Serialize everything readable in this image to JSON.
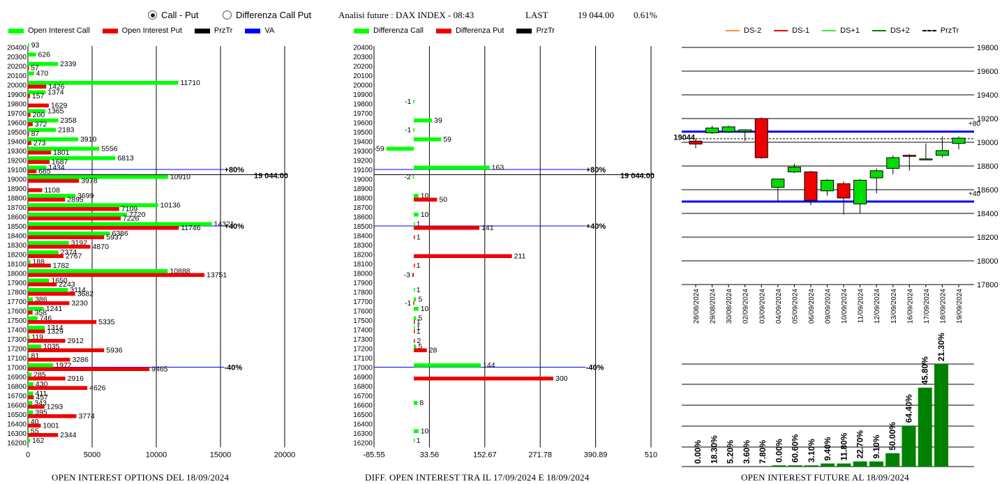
{
  "header": {
    "radio_call_put": "Call - Put",
    "radio_diff": "Differenza Call Put",
    "selected": "call_put",
    "title": "Analisi future : DAX INDEX - 08:43",
    "last_label": "LAST",
    "last_value": "19 044.00",
    "change": "0.61%"
  },
  "legends": {
    "oi": [
      {
        "label": "Open Interest Call",
        "color": "#00ff00"
      },
      {
        "label": "Open Interest Put",
        "color": "#ee0000"
      },
      {
        "label": "PrzTr",
        "color": "#000000"
      },
      {
        "label": "VA",
        "color": "#0000ff"
      }
    ],
    "diff": [
      {
        "label": "Differenza Call",
        "color": "#00ff00"
      },
      {
        "label": "Differenza Put",
        "color": "#ee0000"
      },
      {
        "label": "PrzTr",
        "color": "#000000"
      }
    ],
    "candle": [
      {
        "label": "DS-2",
        "color": "#ff8c3a",
        "style": "solid"
      },
      {
        "label": "DS-1",
        "color": "#ee0000",
        "style": "solid"
      },
      {
        "label": "DS+1",
        "color": "#33ee33",
        "style": "solid"
      },
      {
        "label": "DS+2",
        "color": "#008000",
        "style": "solid"
      },
      {
        "label": "PrzTr",
        "color": "#000000",
        "style": "dashed"
      }
    ]
  },
  "footers": {
    "oi": "OPEN INTEREST OPTIONS DEL 18/09/2024",
    "diff": "DIFF. OPEN INTEREST TRA IL 17/09/2024 E 18/09/2024",
    "fut": "OPEN INTEREST FUTURE AL 18/09/2024"
  },
  "colors": {
    "call": "#00ff00",
    "put": "#ee0000",
    "va": "#0000ff",
    "candle_up": "#00dd00",
    "candle_down": "#ee0000",
    "bar": "#008000"
  },
  "chart_data": [
    {
      "type": "bar",
      "name": "oi",
      "orientation": "horizontal",
      "strikes": [
        20400,
        20300,
        20200,
        20100,
        20000,
        19900,
        19800,
        19700,
        19600,
        19500,
        19400,
        19300,
        19200,
        19100,
        19000,
        18900,
        18800,
        18700,
        18600,
        18500,
        18400,
        18300,
        18200,
        18100,
        18000,
        17900,
        17800,
        17700,
        17600,
        17500,
        17400,
        17300,
        17200,
        17100,
        17000,
        16900,
        16800,
        16700,
        16600,
        16500,
        16400,
        16300,
        16200
      ],
      "series": [
        {
          "name": "Open Interest Call",
          "values": [
            93,
            626,
            2339,
            470,
            11710,
            1374,
            null,
            1365,
            2358,
            2183,
            3910,
            5556,
            6813,
            1434,
            10910,
            null,
            3699,
            10136,
            7720,
            14321,
            6386,
            3192,
            2374,
            188,
            10888,
            1650,
            3114,
            386,
            1241,
            746,
            1314,
            119,
            1035,
            81,
            1972,
            285,
            430,
            411,
            343,
            395,
            40,
            55,
            162
          ]
        },
        {
          "name": "Open Interest Put",
          "values": [
            null,
            null,
            57,
            null,
            1426,
            157,
            1629,
            200,
            372,
            87,
            273,
            1801,
            1687,
            665,
            3978,
            1108,
            2895,
            7109,
            7226,
            11746,
            5937,
            4870,
            2767,
            1782,
            13751,
            2243,
            3682,
            3230,
            358,
            5335,
            1329,
            2912,
            5936,
            3286,
            9465,
            2916,
            4626,
            457,
            1293,
            3774,
            1001,
            2344,
            null
          ]
        }
      ],
      "xlim": [
        0,
        20000
      ],
      "xticks": [
        0,
        5000,
        10000,
        15000,
        20000
      ],
      "przTr": 19044,
      "przTr_label": "19 044.00",
      "va_lines": [
        {
          "strike": 19100,
          "label": "+80%"
        },
        {
          "strike": 18500,
          "label": "+40%"
        },
        {
          "strike": 17000,
          "label": "-40%"
        }
      ]
    },
    {
      "type": "bar",
      "name": "diff",
      "orientation": "horizontal",
      "strikes": [
        20400,
        20300,
        20200,
        20100,
        20000,
        19900,
        19800,
        19700,
        19600,
        19500,
        19400,
        19300,
        19200,
        19100,
        19000,
        18900,
        18800,
        18700,
        18600,
        18500,
        18400,
        18300,
        18200,
        18100,
        18000,
        17900,
        17800,
        17700,
        17600,
        17500,
        17400,
        17300,
        17200,
        17100,
        17000,
        16900,
        16800,
        16700,
        16600,
        16500,
        16400,
        16300,
        16200
      ],
      "series": [
        {
          "name": "Differenza Call",
          "values": [
            null,
            null,
            null,
            null,
            null,
            null,
            -1,
            null,
            39,
            -1,
            59,
            -59,
            null,
            163,
            -2,
            null,
            10,
            null,
            10,
            1,
            null,
            null,
            null,
            null,
            null,
            null,
            1,
            5,
            10,
            5,
            1,
            null,
            5,
            null,
            144,
            null,
            null,
            null,
            8,
            null,
            null,
            10,
            1
          ]
        },
        {
          "name": "Differenza Put",
          "values": [
            null,
            null,
            null,
            null,
            null,
            null,
            null,
            null,
            null,
            null,
            null,
            null,
            null,
            null,
            null,
            null,
            50,
            null,
            null,
            141,
            1,
            null,
            211,
            1,
            -3,
            null,
            null,
            -1,
            null,
            1,
            1,
            2,
            28,
            null,
            null,
            300,
            null,
            null,
            null,
            null,
            null,
            null,
            null
          ]
        }
      ],
      "xlim": [
        -85.55,
        510
      ],
      "xticks": [
        -85.55,
        33.56,
        152.67,
        271.78,
        390.89,
        510
      ],
      "przTr": 19044,
      "przTr_label": "19 044.00",
      "va_lines": [
        {
          "strike": 19100,
          "label": "+80%"
        },
        {
          "strike": 18500,
          "label": "+40%"
        },
        {
          "strike": 17000,
          "label": "-40%"
        }
      ]
    },
    {
      "type": "candlestick",
      "name": "future",
      "dates": [
        "28/08/2024",
        "29/08/2024",
        "30/08/2024",
        "02/09/2024",
        "03/09/2024",
        "04/09/2024",
        "05/09/2024",
        "06/09/2024",
        "09/09/2024",
        "10/09/2024",
        "11/09/2024",
        "12/09/2024",
        "13/09/2024",
        "16/09/2024",
        "17/09/2024",
        "18/09/2024",
        "19/09/2024"
      ],
      "ohlc": [
        [
          19010,
          19030,
          18950,
          18985
        ],
        [
          19080,
          19140,
          19070,
          19120
        ],
        [
          19090,
          19140,
          19080,
          19130
        ],
        [
          19090,
          19110,
          19010,
          19105
        ],
        [
          19200,
          19210,
          18860,
          18870
        ],
        [
          18620,
          18690,
          18500,
          18690
        ],
        [
          18750,
          18820,
          18740,
          18790
        ],
        [
          18750,
          18760,
          18470,
          18510
        ],
        [
          18590,
          18690,
          18550,
          18680
        ],
        [
          18650,
          18670,
          18390,
          18530
        ],
        [
          18480,
          18690,
          18400,
          18680
        ],
        [
          18700,
          18780,
          18570,
          18760
        ],
        [
          18780,
          18890,
          18730,
          18870
        ],
        [
          18890,
          18900,
          18760,
          18885
        ],
        [
          18860,
          18990,
          18850,
          18860
        ],
        [
          18890,
          19050,
          18870,
          18930
        ],
        [
          18990,
          19050,
          18940,
          19035
        ]
      ],
      "ylim": [
        17800,
        19800
      ],
      "yticks": [
        17800,
        18000,
        18200,
        18400,
        18600,
        18800,
        19000,
        19200,
        19400,
        19600,
        19800
      ],
      "price_label": "19044",
      "price": 19044,
      "hlines": [
        {
          "value": 19090,
          "label": "+80"
        },
        {
          "value": 18500,
          "label": "+40"
        }
      ],
      "dashed_level": 19030
    },
    {
      "type": "bar",
      "name": "future_oi",
      "values": [
        0.0,
        18.3,
        5.2,
        3.6,
        7.8,
        0.0,
        60.6,
        3.1,
        9.4,
        11.8,
        22.7,
        9.1,
        50.0,
        64.4,
        45.8,
        21.3
      ],
      "labels": [
        "0.00%",
        "18.30%",
        "5.20%",
        "3.60%",
        "7.80%",
        "0.00%",
        "60.60%",
        "3.10%",
        "9.40%",
        "11.80%",
        "22.70%",
        "9.10%",
        "50.00%",
        "64.40%",
        "45.80%",
        "21.30%"
      ],
      "heights": [
        0,
        0,
        0,
        0,
        0,
        0.012,
        0.012,
        0.012,
        0.03,
        0.03,
        0.05,
        0.05,
        0.13,
        0.4,
        0.77,
        1.0
      ]
    }
  ]
}
